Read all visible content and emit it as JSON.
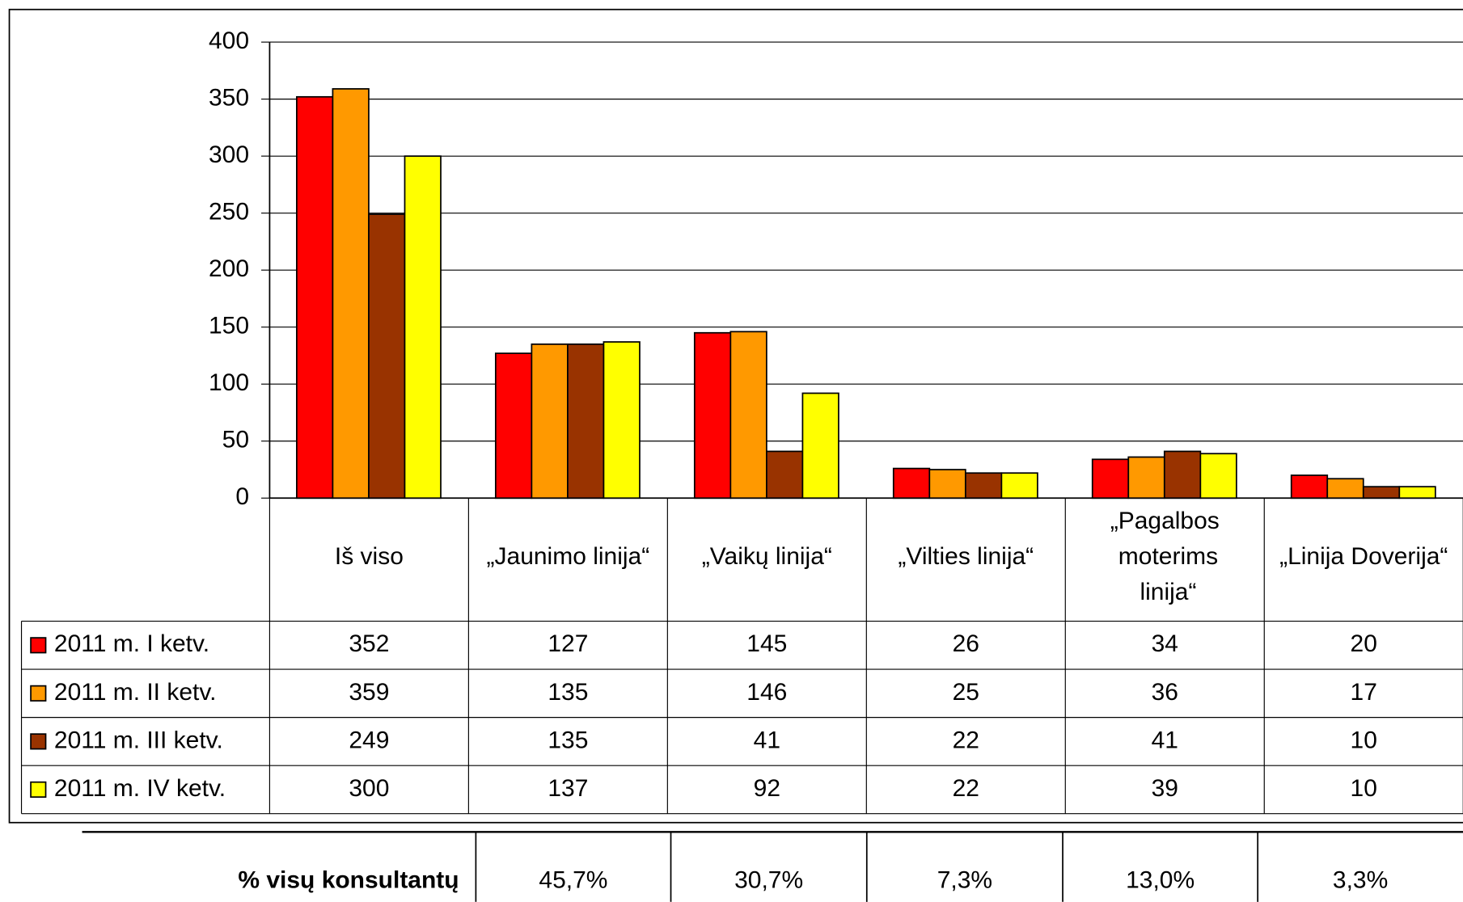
{
  "chart_data": {
    "type": "bar",
    "categories": [
      "Iš viso",
      "„Jaunimo linija“",
      "„Vaikų linija“",
      "„Vilties linija“",
      "„Pagalbos moterims linija“",
      "„Linija Doverija“"
    ],
    "series": [
      {
        "name": "2011 m. I ketv.",
        "color": "#ff0000",
        "values": [
          352,
          127,
          145,
          26,
          34,
          20
        ]
      },
      {
        "name": "2011 m. II ketv.",
        "color": "#ff9900",
        "values": [
          359,
          135,
          146,
          25,
          36,
          17
        ]
      },
      {
        "name": "2011 m. III ketv.",
        "color": "#993300",
        "values": [
          249,
          135,
          41,
          22,
          41,
          10
        ]
      },
      {
        "name": "2011 m. IV ketv.",
        "color": "#ffff00",
        "values": [
          300,
          137,
          92,
          22,
          39,
          10
        ]
      }
    ],
    "ylim": [
      0,
      400
    ],
    "yticks": [
      0,
      50,
      100,
      150,
      200,
      250,
      300,
      350,
      400
    ],
    "grid": true,
    "percent_row": {
      "label": "% visų konsultantų",
      "values": [
        "45,7%",
        "30,7%",
        "7,3%",
        "13,0%",
        "3,3%"
      ]
    }
  }
}
